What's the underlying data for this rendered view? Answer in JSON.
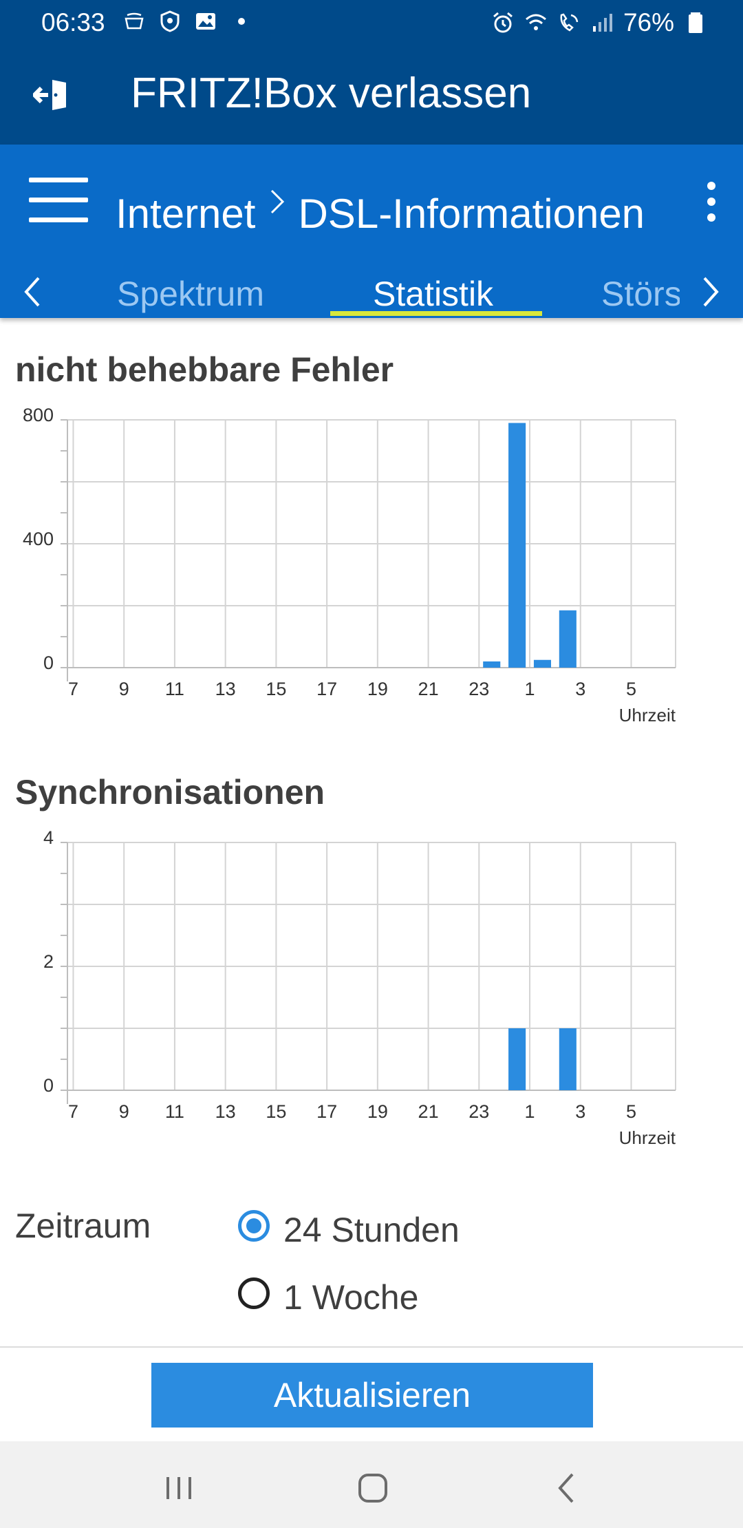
{
  "status_bar": {
    "time": "06:33",
    "battery": "76%",
    "left_icons": [
      "amazon-icon",
      "shield-icon",
      "image-icon",
      "dot-icon"
    ],
    "right_icons": [
      "alarm-icon",
      "wifi-icon",
      "wifi-call-icon",
      "signal-icon",
      "battery-icon"
    ]
  },
  "exit_bar": {
    "label": "FRITZ!Box verlassen",
    "icon": "exit-icon"
  },
  "app_bar": {
    "breadcrumb_parent": "Internet",
    "breadcrumb_current": "DSL-Informationen",
    "menu_icon": "hamburger-menu-icon",
    "more_icon": "more-vertical-icon"
  },
  "tabs": {
    "items": [
      "Spektrum",
      "Statistik",
      "Störs"
    ],
    "active": "Statistik"
  },
  "charts": {
    "errors_title": "nicht behebbare Fehler",
    "sync_title": "Synchronisationen"
  },
  "chart_data": [
    {
      "type": "bar",
      "title": "nicht behebbare Fehler",
      "xlabel": "Uhrzeit",
      "ylabel": "",
      "x_tick_labels": [
        "7",
        "9",
        "11",
        "13",
        "15",
        "17",
        "19",
        "21",
        "23",
        "1",
        "3",
        "5"
      ],
      "y_tick_labels": [
        "0",
        "400",
        "800"
      ],
      "ylim": [
        0,
        800
      ],
      "grid": true,
      "bar_color": "#2b8ce0",
      "categories": [
        "23",
        "0",
        "1",
        "2"
      ],
      "values": [
        20,
        790,
        25,
        185
      ]
    },
    {
      "type": "bar",
      "title": "Synchronisationen",
      "xlabel": "Uhrzeit",
      "ylabel": "",
      "x_tick_labels": [
        "7",
        "9",
        "11",
        "13",
        "15",
        "17",
        "19",
        "21",
        "23",
        "1",
        "3",
        "5"
      ],
      "y_tick_labels": [
        "0",
        "2",
        "4"
      ],
      "ylim": [
        0,
        4
      ],
      "grid": true,
      "bar_color": "#2b8ce0",
      "categories": [
        "0",
        "2"
      ],
      "values": [
        1,
        1
      ]
    }
  ],
  "zeitraum": {
    "label": "Zeitraum",
    "options": [
      "24 Stunden",
      "1 Woche"
    ],
    "selected": "24 Stunden"
  },
  "actions": {
    "refresh_label": "Aktualisieren"
  },
  "colors": {
    "header_dark": "#004a8a",
    "header_blue": "#0a6bc8",
    "accent": "#2b8ce0",
    "tab_underline": "#d8e83a"
  },
  "nav_bar": {
    "icons": [
      "recent-apps-icon",
      "home-icon",
      "back-icon"
    ]
  }
}
